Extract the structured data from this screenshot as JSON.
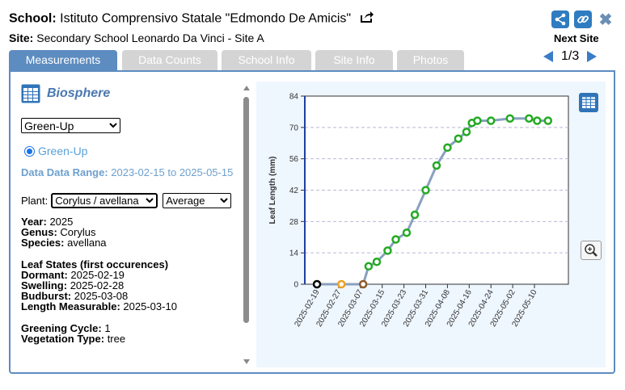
{
  "header": {
    "school_label": "School:",
    "school_name": "Istituto Comprensivo Statale \"Edmondo De Amicis\"",
    "site_label": "Site:",
    "site_name": "Secondary School Leonardo Da Vinci - Site A",
    "next_site_label": "Next Site",
    "page_indicator": "1/3"
  },
  "tabs": [
    {
      "label": "Measurements",
      "active": true
    },
    {
      "label": "Data Counts",
      "active": false
    },
    {
      "label": "School Info",
      "active": false
    },
    {
      "label": "Site Info",
      "active": false
    },
    {
      "label": "Photos",
      "active": false
    }
  ],
  "left": {
    "section_title": "Biosphere",
    "protocol_select": "Green-Up",
    "radio_label": "Green-Up",
    "date_range_label": "Data Data Range:",
    "date_range_value": "2023-02-15 to 2025-05-15",
    "plant_label": "Plant:",
    "plant_select": "Corylus / avellana",
    "stat_select": "Average",
    "year_label": "Year:",
    "year": "2025",
    "genus_label": "Genus:",
    "genus": "Corylus",
    "species_label": "Species:",
    "species": "avellana",
    "leaf_states_title": "Leaf States (first occurences)",
    "dormant_label": "Dormant:",
    "dormant": "2025-02-19",
    "swelling_label": "Swelling:",
    "swelling": "2025-02-28",
    "budburst_label": "Budburst:",
    "budburst": "2025-03-08",
    "length_label": "Length Measurable:",
    "length": "2025-03-10",
    "greening_label": "Greening Cycle:",
    "greening": "1",
    "veg_label": "Vegetation Type:",
    "veg": "tree"
  },
  "colors": {
    "tab_active": "#5d8cc0",
    "tab_inactive": "#d4d4d4",
    "accent": "#4a78b0",
    "green_point": "#22aa22",
    "orange_point": "#f0a020",
    "brown_point": "#8b5a2b",
    "line": "#8aa0c0"
  },
  "chart_data": {
    "type": "line",
    "title": "",
    "xlabel": "",
    "ylabel": "Leaf Length (mm)",
    "ylim": [
      0,
      84
    ],
    "yticks": [
      0,
      14,
      28,
      42,
      56,
      70,
      84
    ],
    "grid": "horizontal dashed",
    "x_ticks": [
      "2025-02-19",
      "2025-02-27",
      "2025-03-07",
      "2025-03-15",
      "2025-03-23",
      "2025-03-31",
      "2025-04-08",
      "2025-04-16",
      "2025-04-24",
      "2025-05-02",
      "2025-05-10"
    ],
    "series": [
      {
        "x": [
          "2025-02-19",
          "2025-02-28",
          "2025-03-08",
          "2025-03-10",
          "2025-03-13",
          "2025-03-17",
          "2025-03-20",
          "2025-03-24",
          "2025-03-27",
          "2025-03-31",
          "2025-04-04",
          "2025-04-08",
          "2025-04-12",
          "2025-04-15",
          "2025-04-17",
          "2025-04-19",
          "2025-04-24",
          "2025-05-01",
          "2025-05-08",
          "2025-05-11",
          "2025-05-15"
        ],
        "y": [
          0,
          0,
          0,
          8,
          10,
          15,
          20,
          23,
          31,
          42,
          53,
          61,
          65,
          68,
          72,
          73,
          73,
          74,
          74,
          73,
          73
        ],
        "states": [
          "dormant",
          "swelling",
          "budburst",
          "green",
          "green",
          "green",
          "green",
          "green",
          "green",
          "green",
          "green",
          "green",
          "green",
          "green",
          "green",
          "green",
          "green",
          "green",
          "green",
          "green",
          "green"
        ]
      }
    ]
  }
}
